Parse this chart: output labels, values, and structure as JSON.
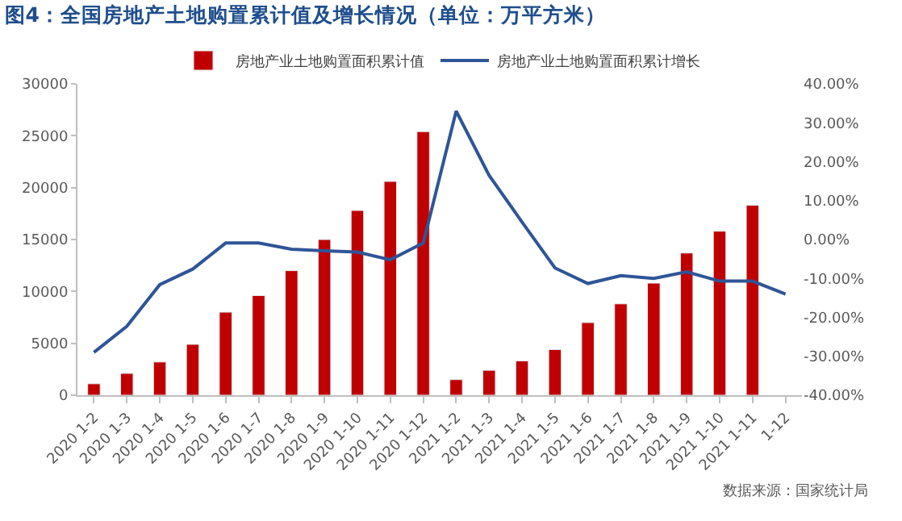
{
  "chart_data": {
    "type": "bar",
    "title": "图4：全国房地产土地购置累计值及增长情况（单位：万平方米）",
    "categories": [
      "2020 1-2",
      "2020 1-3",
      "2020 1-4",
      "2020 1-5",
      "2020 1-6",
      "2020 1-7",
      "2020 1-8",
      "2020 1-9",
      "2020 1-10",
      "2020 1-11",
      "2020 1-12",
      "2021 1-2",
      "2021 1-3",
      "2021 1-4",
      "2021 1-5",
      "2021 1-6",
      "2021 1-7",
      "2021 1-8",
      "2021 1-9",
      "2021 1-10",
      "2021 1-11",
      "1-12"
    ],
    "series": [
      {
        "name": "房地产业土地购置面积累计值",
        "color": "#c00000",
        "values": [
          1100,
          2100,
          3200,
          4900,
          8000,
          9600,
          12000,
          15000,
          17800,
          20600,
          25400,
          1500,
          2400,
          3300,
          4400,
          7000,
          8800,
          10800,
          13700,
          15800,
          18300,
          null
        ]
      },
      {
        "name": "房地产业土地购置面积累计增长",
        "type": "line",
        "axis": "y2",
        "color": "#2f5597",
        "values": [
          -29.0,
          -22.3,
          -11.6,
          -7.6,
          -0.9,
          -0.9,
          -2.5,
          -2.9,
          -3.2,
          -5.2,
          -0.9,
          33.0,
          16.5,
          4.5,
          -7.3,
          -11.3,
          -9.3,
          -10.0,
          -8.3,
          -10.7,
          -10.7,
          -14.0
        ]
      }
    ],
    "ylim": [
      0,
      30000
    ],
    "yticks": [
      0,
      5000,
      10000,
      15000,
      20000,
      25000,
      30000
    ],
    "y2lim": [
      -40,
      40
    ],
    "y2ticks": [
      {
        "value": -40,
        "label": "-40.00%"
      },
      {
        "value": -30,
        "label": "-30.00%"
      },
      {
        "value": -20,
        "label": "-20.00%"
      },
      {
        "value": -10,
        "label": "-10.00%"
      },
      {
        "value": 0,
        "label": "0.00%"
      },
      {
        "value": 10,
        "label": "10.00%"
      },
      {
        "value": 20,
        "label": "20.00%"
      },
      {
        "value": 30,
        "label": "30.00%"
      },
      {
        "value": 40,
        "label": "40.00%"
      }
    ],
    "legend": "top",
    "annotations": [
      "数据来源：国家统计局"
    ]
  }
}
